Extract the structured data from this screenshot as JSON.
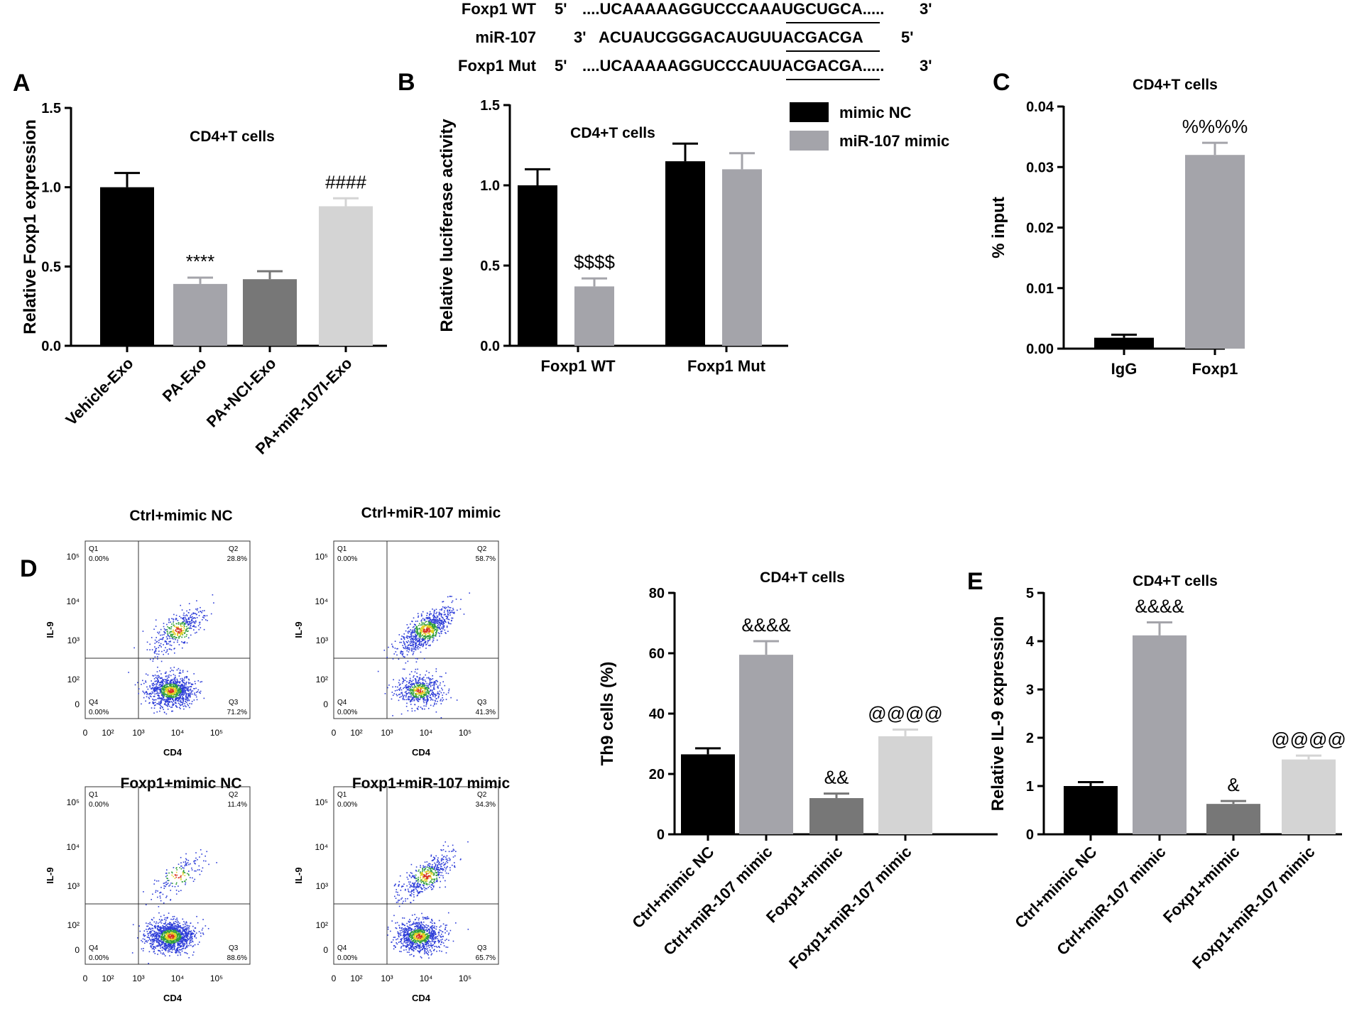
{
  "sequence": {
    "rows": [
      {
        "label": "Foxp1 WT",
        "prime_left": "5'",
        "seq": "....UCAAAAAGGUCCCAAAUGCUGCA.....",
        "prime_right": "3'"
      },
      {
        "label": "miR-107",
        "prime_left": "3'",
        "seq": "ACUAUCGGGACAUGUUACGACGA",
        "prime_right": "5'"
      },
      {
        "label": "Foxp1 Mut",
        "prime_left": "5'",
        "seq": "....UCAAAAAGGUCCCAUUACGACGA.....",
        "prime_right": "3'"
      }
    ]
  },
  "colors": {
    "black": "#000000",
    "gray": "#a4a4aa",
    "darkgray": "#777777",
    "lightgray": "#d4d4d4",
    "scatter_blue": "#2c3cd8",
    "scatter_green": "#2e9d3a",
    "scatter_yellow": "#e0d020",
    "scatter_red": "#d83020"
  },
  "chart_data": [
    {
      "id": "A",
      "panel_letter": "A",
      "type": "bar",
      "title": "CD4+T cells",
      "ylabel": "Relative Foxp1 expression",
      "ylim": [
        0,
        1.5
      ],
      "yticks": [
        "0.0",
        "0.5",
        "1.0",
        "1.5"
      ],
      "ytick_values": [
        0,
        0.5,
        1.0,
        1.5
      ],
      "categories": [
        "Vehicle-Exo",
        "PA-Exo",
        "PA+NCI-Exo",
        "PA+miR-107I-Exo"
      ],
      "values": [
        1.0,
        0.39,
        0.42,
        0.88
      ],
      "errors": [
        0.09,
        0.04,
        0.05,
        0.05
      ],
      "bar_colors": [
        "black",
        "gray",
        "darkgray",
        "lightgray"
      ],
      "annotations": [
        "",
        "****",
        "",
        "####"
      ]
    },
    {
      "id": "B",
      "panel_letter": "B",
      "type": "bar",
      "title": "CD4+T cells",
      "ylabel": "Relative luciferase activity",
      "ylim": [
        0,
        1.5
      ],
      "yticks": [
        "0.0",
        "0.5",
        "1.0",
        "1.5"
      ],
      "ytick_values": [
        0,
        0.5,
        1.0,
        1.5
      ],
      "categories": [
        "Foxp1 WT",
        "Foxp1 Mut"
      ],
      "series": [
        {
          "name": "mimic NC",
          "color": "black",
          "values": [
            1.0,
            1.15
          ],
          "errors": [
            0.1,
            0.11
          ],
          "annotations": [
            "",
            ""
          ]
        },
        {
          "name": "miR-107 mimic",
          "color": "gray",
          "values": [
            0.37,
            1.1
          ],
          "errors": [
            0.05,
            0.1
          ],
          "annotations": [
            "$$$$",
            ""
          ]
        }
      ],
      "legend": "top-right"
    },
    {
      "id": "C",
      "panel_letter": "C",
      "type": "bar",
      "title": "CD4+T cells",
      "ylabel": "% input",
      "ylim": [
        0,
        0.04
      ],
      "yticks": [
        "0.00",
        "0.01",
        "0.02",
        "0.03",
        "0.04"
      ],
      "ytick_values": [
        0,
        0.01,
        0.02,
        0.03,
        0.04
      ],
      "categories": [
        "IgG",
        "Foxp1"
      ],
      "values": [
        0.0018,
        0.032
      ],
      "errors": [
        0.0005,
        0.002
      ],
      "bar_colors": [
        "black",
        "gray"
      ],
      "annotations": [
        "",
        "%%%%"
      ]
    },
    {
      "id": "D",
      "panel_letter": "",
      "type": "bar",
      "title": "CD4+T cells",
      "ylabel": "Th9 cells (%)",
      "ylim": [
        0,
        80
      ],
      "yticks": [
        "0",
        "20",
        "40",
        "60",
        "80"
      ],
      "ytick_values": [
        0,
        20,
        40,
        60,
        80
      ],
      "categories": [
        "Ctrl+mimic NC",
        "Ctrl+miR-107 mimic",
        "Foxp1+mimic",
        "Foxp1+miR-107 mimic"
      ],
      "values": [
        26.5,
        59.5,
        12.0,
        32.5
      ],
      "errors": [
        2.0,
        4.5,
        1.5,
        2.2
      ],
      "bar_colors": [
        "black",
        "gray",
        "darkgray",
        "lightgray"
      ],
      "annotations": [
        "",
        "&&&&",
        "&&",
        "@@@@"
      ]
    },
    {
      "id": "E",
      "panel_letter": "E",
      "type": "bar",
      "title": "CD4+T cells",
      "ylabel": "Relative IL-9 expression",
      "ylim": [
        0,
        5
      ],
      "yticks": [
        "0",
        "1",
        "2",
        "3",
        "4",
        "5"
      ],
      "ytick_values": [
        0,
        1,
        2,
        3,
        4,
        5
      ],
      "categories": [
        "Ctrl+mimic NC",
        "Ctrl+miR-107 mimic",
        "Foxp1+mimic",
        "Foxp1+miR-107 mimic"
      ],
      "values": [
        1.0,
        4.12,
        0.63,
        1.55
      ],
      "errors": [
        0.08,
        0.27,
        0.06,
        0.08
      ],
      "bar_colors": [
        "black",
        "gray",
        "darkgray",
        "lightgray"
      ],
      "annotations": [
        "",
        "&&&&",
        "&",
        "@@@@"
      ]
    }
  ],
  "flow": {
    "panel_letter": "D",
    "xlabel": "CD4",
    "ylabel": "IL-9",
    "xticks": [
      "0",
      "10²",
      "10³",
      "10⁴",
      "10⁵"
    ],
    "yticks": [
      "0",
      "10²",
      "10³",
      "10⁴",
      "10⁵"
    ],
    "plots": [
      {
        "title": "Ctrl+mimic NC",
        "q1": "Q1",
        "q1v": "0.00%",
        "q2": "Q2",
        "q2v": "28.8%",
        "q3": "Q3",
        "q3v": "71.2%",
        "q4": "Q4",
        "q4v": "0.00%",
        "upper_frac": 0.288
      },
      {
        "title": "Ctrl+miR-107 mimic",
        "q1": "Q1",
        "q1v": "0.00%",
        "q2": "Q2",
        "q2v": "58.7%",
        "q3": "Q3",
        "q3v": "41.3%",
        "q4": "Q4",
        "q4v": "0.00%",
        "upper_frac": 0.587
      },
      {
        "title": "Foxp1+mimic NC",
        "q1": "Q1",
        "q1v": "0.00%",
        "q2": "Q2",
        "q2v": "11.4%",
        "q3": "Q3",
        "q3v": "88.6%",
        "q4": "Q4",
        "q4v": "0.00%",
        "upper_frac": 0.114
      },
      {
        "title": "Foxp1+miR-107 mimic",
        "q1": "Q1",
        "q1v": "0.00%",
        "q2": "Q2",
        "q2v": "34.3%",
        "q3": "Q3",
        "q3v": "65.7%",
        "q4": "Q4",
        "q4v": "0.00%",
        "upper_frac": 0.343
      }
    ]
  }
}
